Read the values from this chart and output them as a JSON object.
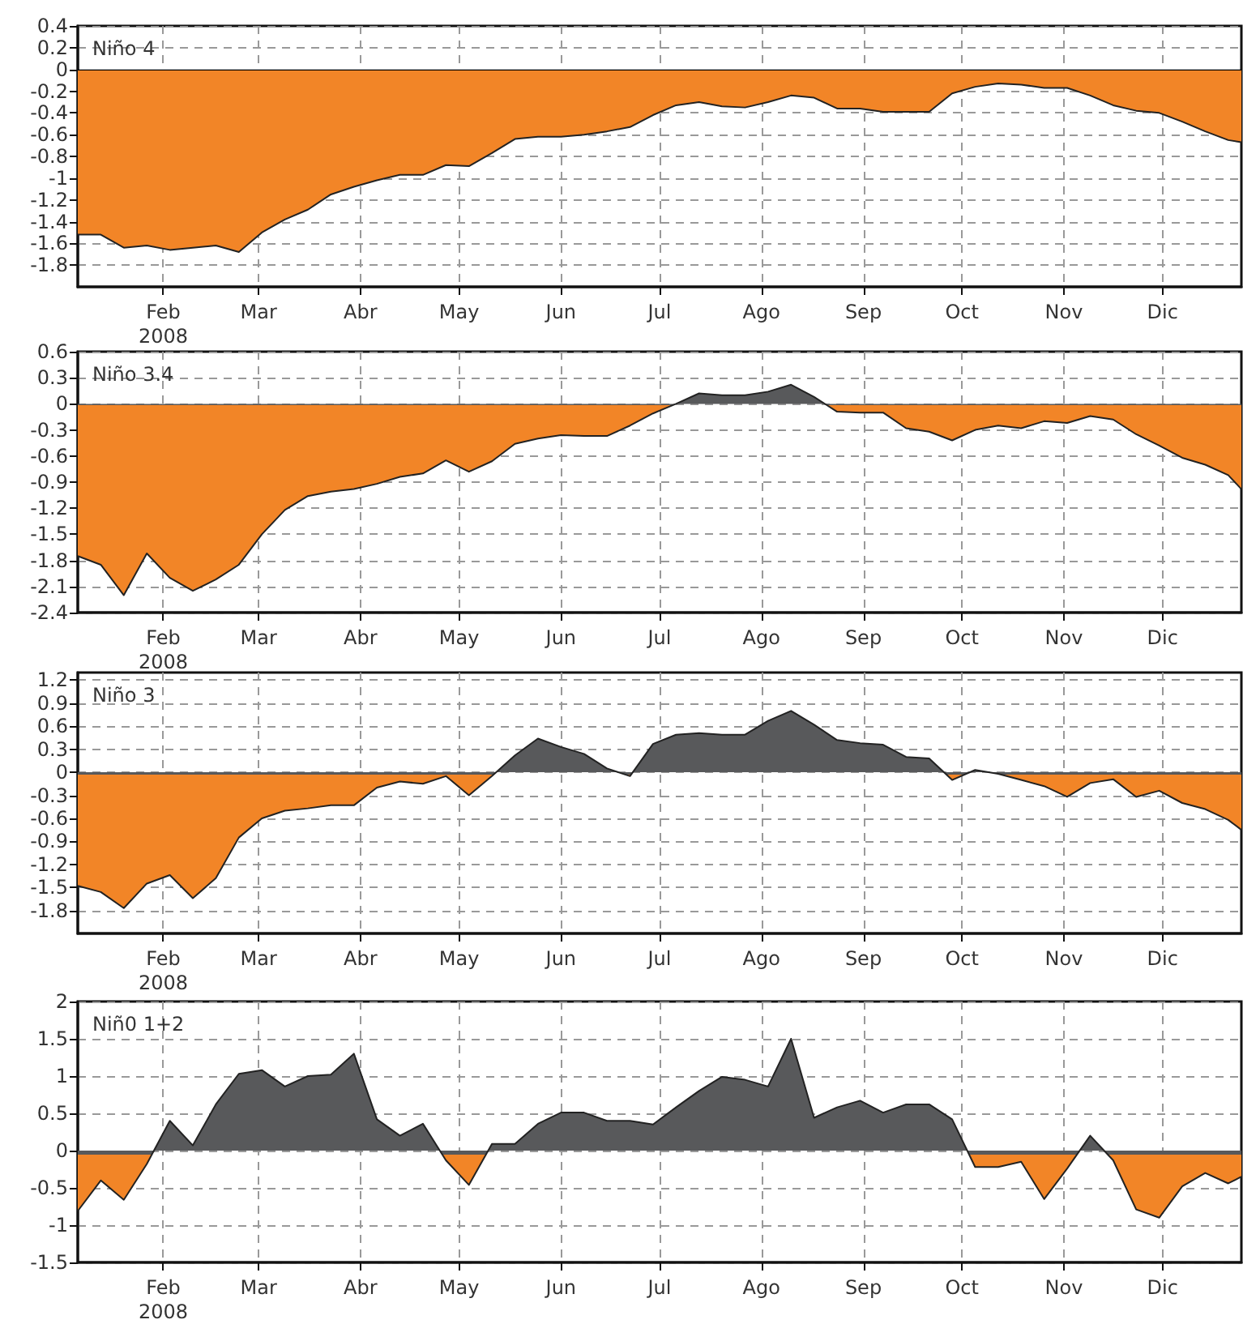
{
  "chart_data": [
    {
      "type": "area",
      "title": "Niño 4",
      "grid": true,
      "marker": "none",
      "xlim": [
        "2008-01-06",
        "2008-12-25"
      ],
      "ylim": [
        -2,
        0.4
      ],
      "yticks": [
        -1.8,
        -1.6,
        -1.4,
        -1.2,
        -1,
        -0.8,
        -0.6,
        -0.4,
        -0.2,
        0,
        0.2,
        0.4
      ],
      "xticks": [
        {
          "value": "2008-02-01",
          "label": "Feb\n2008"
        },
        {
          "value": "2008-03-01",
          "label": "Mar"
        },
        {
          "value": "2008-04-01",
          "label": "Abr"
        },
        {
          "value": "2008-05-01",
          "label": "May"
        },
        {
          "value": "2008-06-01",
          "label": "Jun"
        },
        {
          "value": "2008-07-01",
          "label": "Jul"
        },
        {
          "value": "2008-08-01",
          "label": "Ago"
        },
        {
          "value": "2008-09-01",
          "label": "Sep"
        },
        {
          "value": "2008-10-01",
          "label": "Oct"
        },
        {
          "value": "2008-11-01",
          "label": "Nov"
        },
        {
          "value": "2008-12-01",
          "label": "Dic"
        }
      ],
      "x": [
        "2008-01-06",
        "2008-01-13",
        "2008-01-20",
        "2008-01-27",
        "2008-02-03",
        "2008-02-10",
        "2008-02-17",
        "2008-02-24",
        "2008-03-02",
        "2008-03-09",
        "2008-03-16",
        "2008-03-23",
        "2008-03-30",
        "2008-04-06",
        "2008-04-13",
        "2008-04-20",
        "2008-04-27",
        "2008-05-04",
        "2008-05-11",
        "2008-05-18",
        "2008-05-25",
        "2008-06-01",
        "2008-06-08",
        "2008-06-15",
        "2008-06-22",
        "2008-06-29",
        "2008-07-06",
        "2008-07-13",
        "2008-07-20",
        "2008-07-27",
        "2008-08-03",
        "2008-08-10",
        "2008-08-17",
        "2008-08-24",
        "2008-08-31",
        "2008-09-07",
        "2008-09-14",
        "2008-09-21",
        "2008-09-28",
        "2008-10-05",
        "2008-10-12",
        "2008-10-19",
        "2008-10-26",
        "2008-11-02",
        "2008-11-09",
        "2008-11-16",
        "2008-11-23",
        "2008-11-30",
        "2008-12-07",
        "2008-12-14",
        "2008-12-21",
        "2008-12-25"
      ],
      "series": [
        {
          "colors": [
            "#f28527",
            "#f28527",
            "#f28527",
            "#f28527",
            "#f28527",
            "#f28527",
            "#f28527",
            "#f28527",
            "#f28527",
            "#f28527",
            "#f28527",
            "#f28527",
            "#f28527",
            "#f28527",
            "#f28527",
            "#f28527",
            "#f28527",
            "#f28527",
            "#f28527",
            "#f28527",
            "#f28527",
            "#f28527",
            "#f28527",
            "#f28527",
            "#f28527",
            "#f28527",
            "#f28527",
            "#f28527",
            "#f28527",
            "#f28527",
            "#f28527",
            "#f28527",
            "#f28527",
            "#f28527",
            "#f28527",
            "#f28527",
            "#f28527",
            "#f28527",
            "#f28527",
            "#f28527",
            "#f28527",
            "#f28527",
            "#f28527",
            "#f28527",
            "#f28527",
            "#f28527",
            "#f28527",
            "#f28527",
            "#f28527",
            "#f28527",
            "#f28527",
            "#f28527"
          ],
          "values": [
            -1.52,
            -1.52,
            -1.64,
            -1.62,
            -1.66,
            -1.64,
            -1.62,
            -1.68,
            -1.5,
            -1.38,
            -1.29,
            -1.15,
            -1.08,
            -1.02,
            -0.97,
            -0.97,
            -0.88,
            -0.89,
            -0.77,
            -0.64,
            -0.62,
            -0.62,
            -0.6,
            -0.57,
            -0.53,
            -0.42,
            -0.33,
            -0.3,
            -0.34,
            -0.35,
            -0.3,
            -0.24,
            -0.26,
            -0.36,
            -0.36,
            -0.39,
            -0.39,
            -0.39,
            -0.22,
            -0.16,
            -0.13,
            -0.14,
            -0.17,
            -0.17,
            -0.24,
            -0.33,
            -0.38,
            -0.4,
            -0.48,
            -0.57,
            -0.65,
            -0.67
          ]
        }
      ]
    },
    {
      "type": "area",
      "title": "Niño 3.4",
      "grid": true,
      "marker": "none",
      "xlim": [
        "2008-01-06",
        "2008-12-25"
      ],
      "ylim": [
        -2.4,
        0.6
      ],
      "yticks": [
        -2.4,
        -2.1,
        -1.8,
        -1.5,
        -1.2,
        -0.9,
        -0.6,
        -0.3,
        0,
        0.3,
        0.6
      ],
      "xticks": [
        {
          "value": "2008-02-01",
          "label": "Feb\n2008"
        },
        {
          "value": "2008-03-01",
          "label": "Mar"
        },
        {
          "value": "2008-04-01",
          "label": "Abr"
        },
        {
          "value": "2008-05-01",
          "label": "May"
        },
        {
          "value": "2008-06-01",
          "label": "Jun"
        },
        {
          "value": "2008-07-01",
          "label": "Jul"
        },
        {
          "value": "2008-08-01",
          "label": "Ago"
        },
        {
          "value": "2008-09-01",
          "label": "Sep"
        },
        {
          "value": "2008-10-01",
          "label": "Oct"
        },
        {
          "value": "2008-11-01",
          "label": "Nov"
        },
        {
          "value": "2008-12-01",
          "label": "Dic"
        }
      ],
      "x": [
        "2008-01-06",
        "2008-01-13",
        "2008-01-20",
        "2008-01-27",
        "2008-02-03",
        "2008-02-10",
        "2008-02-17",
        "2008-02-24",
        "2008-03-02",
        "2008-03-09",
        "2008-03-16",
        "2008-03-23",
        "2008-03-30",
        "2008-04-06",
        "2008-04-13",
        "2008-04-20",
        "2008-04-27",
        "2008-05-04",
        "2008-05-11",
        "2008-05-18",
        "2008-05-25",
        "2008-06-01",
        "2008-06-08",
        "2008-06-15",
        "2008-06-22",
        "2008-06-29",
        "2008-07-06",
        "2008-07-13",
        "2008-07-20",
        "2008-07-27",
        "2008-08-03",
        "2008-08-10",
        "2008-08-17",
        "2008-08-24",
        "2008-08-31",
        "2008-09-07",
        "2008-09-14",
        "2008-09-21",
        "2008-09-28",
        "2008-10-05",
        "2008-10-12",
        "2008-10-19",
        "2008-10-26",
        "2008-11-02",
        "2008-11-09",
        "2008-11-16",
        "2008-11-23",
        "2008-11-30",
        "2008-12-07",
        "2008-12-14",
        "2008-12-21",
        "2008-12-25"
      ],
      "series": [
        {
          "colors": [
            "#f28527",
            "#f28527",
            "#f28527",
            "#f28527",
            "#f28527",
            "#f28527",
            "#f28527",
            "#f28527",
            "#f28527",
            "#f28527",
            "#f28527",
            "#f28527",
            "#f28527",
            "#f28527",
            "#f28527",
            "#f28527",
            "#f28527",
            "#f28527",
            "#f28527",
            "#f28527",
            "#f28527",
            "#f28527",
            "#f28527",
            "#f28527",
            "#f28527",
            "#f28527",
            "#58595b",
            "#58595b",
            "#58595b",
            "#58595b",
            "#58595b",
            "#58595b",
            "#58595b",
            "#f28527",
            "#f28527",
            "#f28527",
            "#f28527",
            "#f28527",
            "#f28527",
            "#f28527",
            "#f28527",
            "#f28527",
            "#f28527",
            "#f28527",
            "#f28527",
            "#f28527",
            "#f28527",
            "#f28527",
            "#f28527",
            "#f28527",
            "#f28527",
            "#f28527"
          ],
          "values": [
            -1.75,
            -1.85,
            -2.2,
            -1.72,
            -2,
            -2.15,
            -2.02,
            -1.85,
            -1.5,
            -1.22,
            -1.06,
            -1.01,
            -0.98,
            -0.92,
            -0.84,
            -0.8,
            -0.65,
            -0.78,
            -0.66,
            -0.46,
            -0.4,
            -0.36,
            -0.37,
            -0.37,
            -0.25,
            -0.11,
            0,
            0.12,
            0.1,
            0.1,
            0.14,
            0.22,
            0.08,
            -0.09,
            -0.1,
            -0.1,
            -0.28,
            -0.32,
            -0.42,
            -0.3,
            -0.25,
            -0.28,
            -0.2,
            -0.22,
            -0.14,
            -0.18,
            -0.35,
            -0.48,
            -0.62,
            -0.7,
            -0.82,
            -0.98
          ]
        }
      ]
    },
    {
      "type": "area",
      "title": "Niño 3",
      "grid": true,
      "marker": "none",
      "xlim": [
        "2008-01-06",
        "2008-12-25"
      ],
      "ylim": [
        -2.1,
        1.3
      ],
      "yticks": [
        -1.8,
        -1.5,
        -1.2,
        -0.9,
        -0.6,
        -0.3,
        0,
        0.3,
        0.6,
        0.9,
        1.2
      ],
      "xticks": [
        {
          "value": "2008-02-01",
          "label": "Feb\n2008"
        },
        {
          "value": "2008-03-01",
          "label": "Mar"
        },
        {
          "value": "2008-04-01",
          "label": "Abr"
        },
        {
          "value": "2008-05-01",
          "label": "May"
        },
        {
          "value": "2008-06-01",
          "label": "Jun"
        },
        {
          "value": "2008-07-01",
          "label": "Jul"
        },
        {
          "value": "2008-08-01",
          "label": "Ago"
        },
        {
          "value": "2008-09-01",
          "label": "Sep"
        },
        {
          "value": "2008-10-01",
          "label": "Oct"
        },
        {
          "value": "2008-11-01",
          "label": "Nov"
        },
        {
          "value": "2008-12-01",
          "label": "Dic"
        }
      ],
      "x": [
        "2008-01-06",
        "2008-01-13",
        "2008-01-20",
        "2008-01-27",
        "2008-02-03",
        "2008-02-10",
        "2008-02-17",
        "2008-02-24",
        "2008-03-02",
        "2008-03-09",
        "2008-03-16",
        "2008-03-23",
        "2008-03-30",
        "2008-04-06",
        "2008-04-13",
        "2008-04-20",
        "2008-04-27",
        "2008-05-04",
        "2008-05-11",
        "2008-05-18",
        "2008-05-25",
        "2008-06-01",
        "2008-06-08",
        "2008-06-15",
        "2008-06-22",
        "2008-06-29",
        "2008-07-06",
        "2008-07-13",
        "2008-07-20",
        "2008-07-27",
        "2008-08-03",
        "2008-08-10",
        "2008-08-17",
        "2008-08-24",
        "2008-08-31",
        "2008-09-07",
        "2008-09-14",
        "2008-09-21",
        "2008-09-28",
        "2008-10-05",
        "2008-10-12",
        "2008-10-19",
        "2008-10-26",
        "2008-11-02",
        "2008-11-09",
        "2008-11-16",
        "2008-11-23",
        "2008-11-30",
        "2008-12-07",
        "2008-12-14",
        "2008-12-21",
        "2008-12-25"
      ],
      "series": [
        {
          "colors": [
            "#f28527",
            "#f28527",
            "#f28527",
            "#f28527",
            "#f28527",
            "#f28527",
            "#f28527",
            "#f28527",
            "#f28527",
            "#f28527",
            "#f28527",
            "#f28527",
            "#f28527",
            "#f28527",
            "#f28527",
            "#f28527",
            "#f28527",
            "#f28527",
            "#f28527",
            "#58595b",
            "#58595b",
            "#58595b",
            "#58595b",
            "#58595b",
            "#f28527",
            "#58595b",
            "#58595b",
            "#58595b",
            "#58595b",
            "#58595b",
            "#58595b",
            "#58595b",
            "#58595b",
            "#58595b",
            "#58595b",
            "#58595b",
            "#58595b",
            "#58595b",
            "#f28527",
            "#58595b",
            "#f28527",
            "#f28527",
            "#f28527",
            "#f28527",
            "#f28527",
            "#f28527",
            "#f28527",
            "#f28527",
            "#f28527",
            "#f28527",
            "#f28527",
            "#f28527"
          ],
          "values": [
            -1.48,
            -1.56,
            -1.77,
            -1.45,
            -1.34,
            -1.64,
            -1.38,
            -0.85,
            -0.6,
            -0.5,
            -0.47,
            -0.43,
            -0.43,
            -0.2,
            -0.12,
            -0.15,
            -0.05,
            -0.3,
            -0.05,
            0.22,
            0.44,
            0.33,
            0.24,
            0.05,
            -0.05,
            0.37,
            0.49,
            0.51,
            0.49,
            0.49,
            0.67,
            0.8,
            0.62,
            0.42,
            0.38,
            0.36,
            0.2,
            0.18,
            -0.1,
            0.03,
            -0.02,
            -0.1,
            -0.18,
            -0.32,
            -0.14,
            -0.09,
            -0.32,
            -0.24,
            -0.4,
            -0.48,
            -0.62,
            -0.75
          ]
        }
      ]
    },
    {
      "type": "area",
      "title": "Niñ0 1+2",
      "grid": true,
      "marker": "none",
      "xlim": [
        "2008-01-06",
        "2008-12-25"
      ],
      "ylim": [
        -1.5,
        2
      ],
      "yticks": [
        -1.5,
        -1,
        -0.5,
        0,
        0.5,
        1,
        1.5,
        2
      ],
      "xticks": [
        {
          "value": "2008-02-01",
          "label": "Feb\n2008"
        },
        {
          "value": "2008-03-01",
          "label": "Mar"
        },
        {
          "value": "2008-04-01",
          "label": "Abr"
        },
        {
          "value": "2008-05-01",
          "label": "May"
        },
        {
          "value": "2008-06-01",
          "label": "Jun"
        },
        {
          "value": "2008-07-01",
          "label": "Jul"
        },
        {
          "value": "2008-08-01",
          "label": "Ago"
        },
        {
          "value": "2008-09-01",
          "label": "Sep"
        },
        {
          "value": "2008-10-01",
          "label": "Oct"
        },
        {
          "value": "2008-11-01",
          "label": "Nov"
        },
        {
          "value": "2008-12-01",
          "label": "Dic"
        }
      ],
      "x": [
        "2008-01-06",
        "2008-01-13",
        "2008-01-20",
        "2008-01-27",
        "2008-02-03",
        "2008-02-10",
        "2008-02-17",
        "2008-02-24",
        "2008-03-02",
        "2008-03-09",
        "2008-03-16",
        "2008-03-23",
        "2008-03-30",
        "2008-04-06",
        "2008-04-13",
        "2008-04-20",
        "2008-04-27",
        "2008-05-04",
        "2008-05-11",
        "2008-05-18",
        "2008-05-25",
        "2008-06-01",
        "2008-06-08",
        "2008-06-15",
        "2008-06-22",
        "2008-06-29",
        "2008-07-06",
        "2008-07-13",
        "2008-07-20",
        "2008-07-27",
        "2008-08-03",
        "2008-08-10",
        "2008-08-17",
        "2008-08-24",
        "2008-08-31",
        "2008-09-07",
        "2008-09-14",
        "2008-09-21",
        "2008-09-28",
        "2008-10-05",
        "2008-10-12",
        "2008-10-19",
        "2008-10-26",
        "2008-11-02",
        "2008-11-09",
        "2008-11-16",
        "2008-11-23",
        "2008-11-30",
        "2008-12-07",
        "2008-12-14",
        "2008-12-21",
        "2008-12-25"
      ],
      "series": [
        {
          "colors": [
            "#f28527",
            "#f28527",
            "#f28527",
            "#f28527",
            "#58595b",
            "#58595b",
            "#58595b",
            "#58595b",
            "#58595b",
            "#58595b",
            "#58595b",
            "#58595b",
            "#58595b",
            "#58595b",
            "#58595b",
            "#58595b",
            "#f28527",
            "#f28527",
            "#58595b",
            "#58595b",
            "#58595b",
            "#58595b",
            "#58595b",
            "#58595b",
            "#58595b",
            "#58595b",
            "#58595b",
            "#58595b",
            "#58595b",
            "#58595b",
            "#58595b",
            "#58595b",
            "#58595b",
            "#58595b",
            "#58595b",
            "#58595b",
            "#58595b",
            "#58595b",
            "#58595b",
            "#f28527",
            "#f28527",
            "#f28527",
            "#f28527",
            "#f28527",
            "#58595b",
            "#f28527",
            "#f28527",
            "#f28527",
            "#f28527",
            "#f28527",
            "#f28527",
            "#f28527"
          ],
          "values": [
            -0.81,
            -0.4,
            -0.66,
            -0.18,
            0.4,
            0.07,
            0.62,
            1.03,
            1.08,
            0.86,
            1,
            1.02,
            1.3,
            0.42,
            0.2,
            0.36,
            -0.13,
            -0.46,
            0.09,
            0.09,
            0.36,
            0.51,
            0.51,
            0.4,
            0.4,
            0.35,
            0.58,
            0.8,
            0.99,
            0.95,
            0.86,
            1.5,
            0.44,
            0.58,
            0.67,
            0.51,
            0.62,
            0.62,
            0.42,
            -0.22,
            -0.22,
            -0.15,
            -0.65,
            -0.24,
            0.2,
            -0.13,
            -0.79,
            -0.9,
            -0.48,
            -0.3,
            -0.44,
            -0.35
          ]
        }
      ]
    }
  ]
}
